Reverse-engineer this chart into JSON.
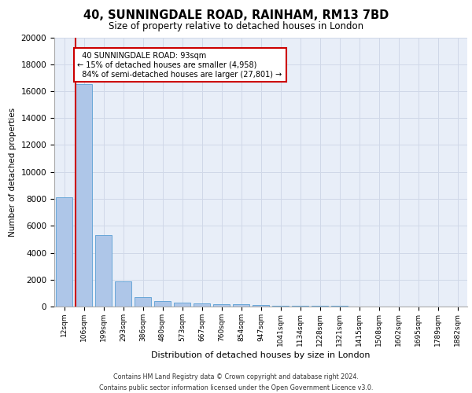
{
  "title_line1": "40, SUNNINGDALE ROAD, RAINHAM, RM13 7BD",
  "title_line2": "Size of property relative to detached houses in London",
  "xlabel": "Distribution of detached houses by size in London",
  "ylabel": "Number of detached properties",
  "categories": [
    "12sqm",
    "106sqm",
    "199sqm",
    "293sqm",
    "386sqm",
    "480sqm",
    "573sqm",
    "667sqm",
    "760sqm",
    "854sqm",
    "947sqm",
    "1041sqm",
    "1134sqm",
    "1228sqm",
    "1321sqm",
    "1415sqm",
    "1508sqm",
    "1602sqm",
    "1695sqm",
    "1789sqm",
    "1882sqm"
  ],
  "values": [
    8100,
    16500,
    5300,
    1850,
    700,
    380,
    300,
    250,
    200,
    150,
    100,
    70,
    50,
    40,
    30,
    20,
    15,
    10,
    8,
    5,
    3
  ],
  "bar_color": "#aec6e8",
  "bar_edge_color": "#5a9fd4",
  "marker_label": "40 SUNNINGDALE ROAD: 93sqm",
  "marker_smaller_pct": "15%",
  "marker_smaller_n": "4,958",
  "marker_larger_pct": "84%",
  "marker_larger_n": "27,801",
  "annotation_box_color": "#cc0000",
  "vertical_line_color": "#cc0000",
  "ylim": [
    0,
    20000
  ],
  "yticks": [
    0,
    2000,
    4000,
    6000,
    8000,
    10000,
    12000,
    14000,
    16000,
    18000,
    20000
  ],
  "grid_color": "#d0d8e8",
  "bg_color": "#e8eef8",
  "footer_line1": "Contains HM Land Registry data © Crown copyright and database right 2024.",
  "footer_line2": "Contains public sector information licensed under the Open Government Licence v3.0."
}
